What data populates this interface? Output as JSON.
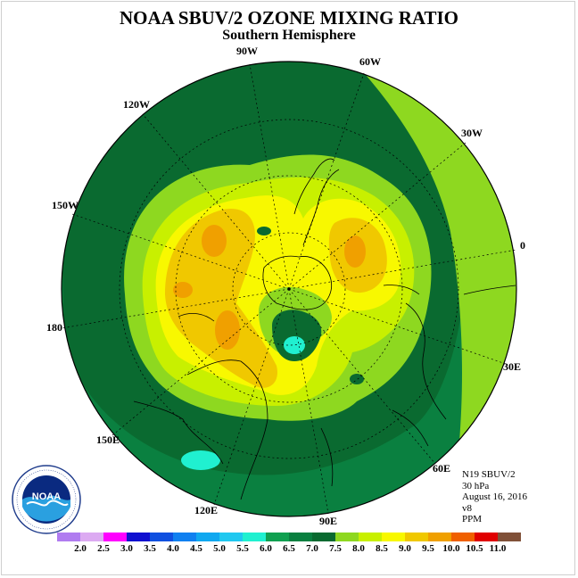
{
  "title": "NOAA SBUV/2 OZONE MIXING RATIO",
  "subtitle": "Southern Hemisphere",
  "longitude_labels": [
    {
      "text": "90W",
      "id": "lon-90w"
    },
    {
      "text": "60W",
      "id": "lon-60w"
    },
    {
      "text": "30W",
      "id": "lon-30w"
    },
    {
      "text": "120W",
      "id": "lon-120w"
    },
    {
      "text": "150W",
      "id": "lon-150w"
    },
    {
      "text": "0",
      "id": "lon-0"
    },
    {
      "text": "180",
      "id": "lon-180"
    },
    {
      "text": "30E",
      "id": "lon-30e"
    },
    {
      "text": "150E",
      "id": "lon-150e"
    },
    {
      "text": "60E",
      "id": "lon-60e"
    },
    {
      "text": "120E",
      "id": "lon-120e"
    },
    {
      "text": "90E",
      "id": "lon-90e"
    }
  ],
  "info": {
    "satellite": "N19 SBUV/2",
    "level": "30 hPa",
    "date": "August 16, 2016",
    "version": "v8",
    "units": "PPM"
  },
  "logo": {
    "text": "NOAA"
  },
  "colorbar": {
    "labels": [
      "2.0",
      "2.5",
      "3.0",
      "3.5",
      "4.0",
      "4.5",
      "5.0",
      "5.5",
      "6.0",
      "6.5",
      "7.0",
      "7.5",
      "8.0",
      "8.5",
      "9.0",
      "9.5",
      "10.0",
      "10.5",
      "11.0"
    ],
    "colors": [
      "#b07cf0",
      "#dcaaf2",
      "#ff00ff",
      "#1010d0",
      "#1050e0",
      "#1080f0",
      "#10a8f0",
      "#20c8f0",
      "#20f0d0",
      "#10a050",
      "#0a8040",
      "#0a6a30",
      "#8ed820",
      "#c8f000",
      "#f8f800",
      "#f0c800",
      "#f0a000",
      "#f06000",
      "#e00000",
      "#805038"
    ],
    "color_names": [
      "lavender",
      "light-violet",
      "magenta",
      "dark-blue",
      "blue",
      "medium-blue",
      "sky-blue",
      "light-blue",
      "aqua",
      "green",
      "medium-green",
      "dark-green",
      "yellow-green",
      "lime",
      "yellow",
      "gold",
      "orange",
      "dark-orange",
      "red",
      "brown"
    ]
  }
}
